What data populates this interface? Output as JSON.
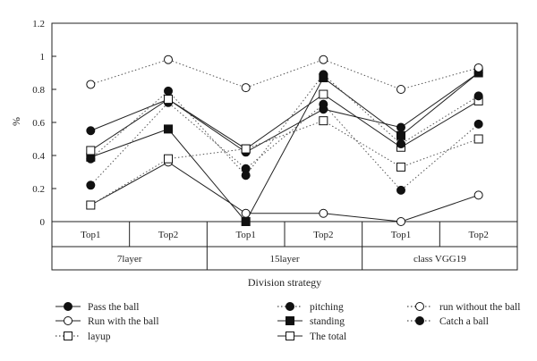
{
  "chart_data": {
    "type": "line",
    "ylabel": "%",
    "xlabel": "Division strategy",
    "ylim": [
      0,
      1.2
    ],
    "yticks": [
      "0",
      "0.2",
      "0.4",
      "0.6",
      "0.8",
      "1",
      "1.2"
    ],
    "categories": [
      "Top1",
      "Top2",
      "Top1",
      "Top2",
      "Top1",
      "Top2"
    ],
    "groups": [
      "7layer",
      "15layer",
      "class VGG19"
    ],
    "grid": false,
    "legend_position": "bottom",
    "series": [
      {
        "name": "Pass the ball",
        "marker": "filled-circle",
        "line": "solid",
        "values": [
          0.55,
          0.74,
          0.42,
          0.68,
          0.57,
          0.9
        ]
      },
      {
        "name": "Run with the ball",
        "marker": "open-circle",
        "line": "solid",
        "values": [
          0.1,
          0.36,
          0.05,
          0.05,
          0.0,
          0.16
        ]
      },
      {
        "name": "layup",
        "marker": "open-square",
        "line": "dotted",
        "values": [
          0.1,
          0.38,
          0.44,
          0.61,
          0.33,
          0.5
        ]
      },
      {
        "name": "pitching",
        "marker": "filled-circle",
        "line": "dotted",
        "values": [
          0.22,
          0.72,
          0.32,
          0.71,
          0.19,
          0.59
        ]
      },
      {
        "name": "standing",
        "marker": "filled-square",
        "line": "solid",
        "values": [
          0.39,
          0.56,
          0.0,
          0.87,
          0.52,
          0.9
        ]
      },
      {
        "name": "The total",
        "marker": "open-square",
        "line": "solid",
        "values": [
          0.43,
          0.74,
          0.44,
          0.77,
          0.45,
          0.73
        ]
      },
      {
        "name": "run without the ball",
        "marker": "open-circle",
        "line": "dotted",
        "values": [
          0.83,
          0.98,
          0.81,
          0.98,
          0.8,
          0.93
        ]
      },
      {
        "name": "Catch a ball",
        "marker": "filled-circle",
        "line": "dotted",
        "values": [
          0.38,
          0.79,
          0.28,
          0.89,
          0.47,
          0.76
        ]
      }
    ]
  }
}
